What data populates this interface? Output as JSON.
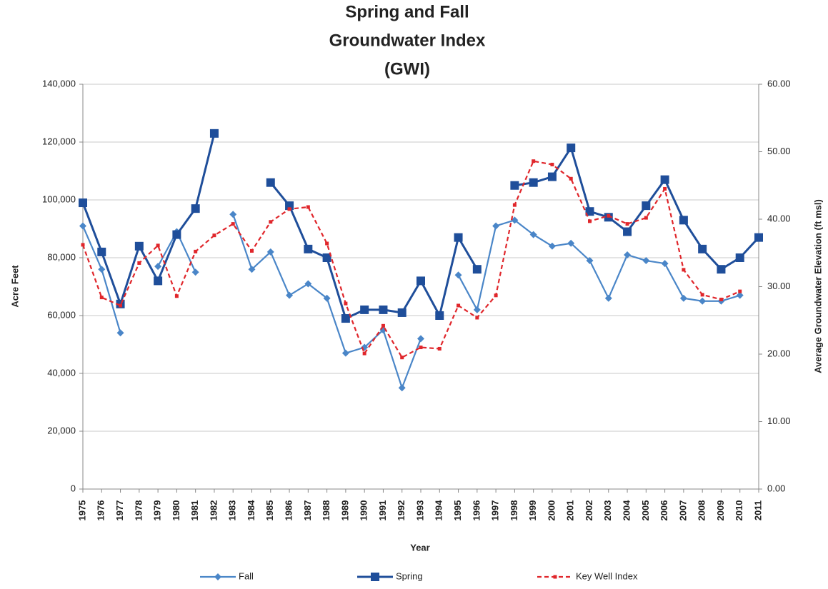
{
  "chart_data": {
    "type": "line",
    "title": [
      "Spring and Fall",
      "Groundwater Index",
      "(GWI)"
    ],
    "x_label": "Year",
    "y_label": "Acre Feet",
    "y2_label": "Average Groundwater Elevation (ft msl)",
    "categories": [
      "1975",
      "1976",
      "1977",
      "1978",
      "1979",
      "1980",
      "1981",
      "1982",
      "1983",
      "1984",
      "1985",
      "1986",
      "1987",
      "1988",
      "1989",
      "1990",
      "1991",
      "1992",
      "1993",
      "1994",
      "1995",
      "1996",
      "1997",
      "1998",
      "1999",
      "2000",
      "2001",
      "2002",
      "2003",
      "2004",
      "2005",
      "2006",
      "2007",
      "2008",
      "2009",
      "2010",
      "2011"
    ],
    "ylim": [
      0,
      140000
    ],
    "yticks": [
      0,
      {
        "value": 20000,
        "label": "20,000"
      },
      {
        "value": 40000,
        "label": "40,000"
      },
      {
        "value": 60000,
        "label": "60,000"
      },
      {
        "value": 80000,
        "label": "80,000"
      },
      {
        "value": 100000,
        "label": "100,000"
      },
      {
        "value": 120000,
        "label": "120,000"
      },
      {
        "value": 140000,
        "label": "140,000"
      }
    ],
    "y2lim": [
      0,
      60
    ],
    "y2ticks": [
      {
        "value": 0,
        "label": "0.00"
      },
      {
        "value": 10,
        "label": "10.00"
      },
      {
        "value": 20,
        "label": "20.00"
      },
      {
        "value": 30,
        "label": "30.00"
      },
      {
        "value": 40,
        "label": "40.00"
      },
      {
        "value": 50,
        "label": "50.00"
      },
      {
        "value": 60,
        "label": "60.00"
      }
    ],
    "grid": true,
    "legend": "bottom",
    "series": [
      {
        "name": "Fall",
        "color": "#4a86c8",
        "marker": "diamond",
        "values": [
          91000,
          76000,
          54000,
          null,
          77000,
          89000,
          75000,
          null,
          95000,
          76000,
          82000,
          67000,
          71000,
          66000,
          47000,
          49000,
          55000,
          35000,
          52000,
          null,
          74000,
          62000,
          91000,
          93000,
          88000,
          84000,
          85000,
          79000,
          66000,
          81000,
          79000,
          78000,
          66000,
          65000,
          65000,
          67000,
          null
        ]
      },
      {
        "name": "Spring",
        "color": "#1f4e9a",
        "marker": "square",
        "values": [
          99000,
          82000,
          64000,
          84000,
          72000,
          88000,
          97000,
          123000,
          null,
          null,
          106000,
          98000,
          83000,
          80000,
          59000,
          62000,
          62000,
          61000,
          72000,
          60000,
          87000,
          76000,
          null,
          105000,
          106000,
          108000,
          118000,
          96000,
          94000,
          89000,
          98000,
          107000,
          93000,
          83000,
          76000,
          80000,
          87000
        ]
      },
      {
        "name": "Key Well Index",
        "color": "#e0262b",
        "marker": "small-square",
        "dashed": true,
        "axis": "y2",
        "values": [
          36.2,
          28.4,
          27.2,
          33.5,
          36.1,
          28.6,
          35.2,
          37.6,
          39.3,
          35.3,
          39.6,
          41.5,
          41.8,
          36.4,
          27.5,
          20.1,
          24.2,
          19.5,
          21.0,
          20.8,
          27.2,
          25.4,
          28.7,
          42.1,
          48.6,
          48.1,
          46.0,
          39.7,
          40.5,
          39.3,
          40.2,
          44.5,
          32.5,
          28.8,
          28.1,
          29.3,
          null
        ]
      }
    ]
  }
}
